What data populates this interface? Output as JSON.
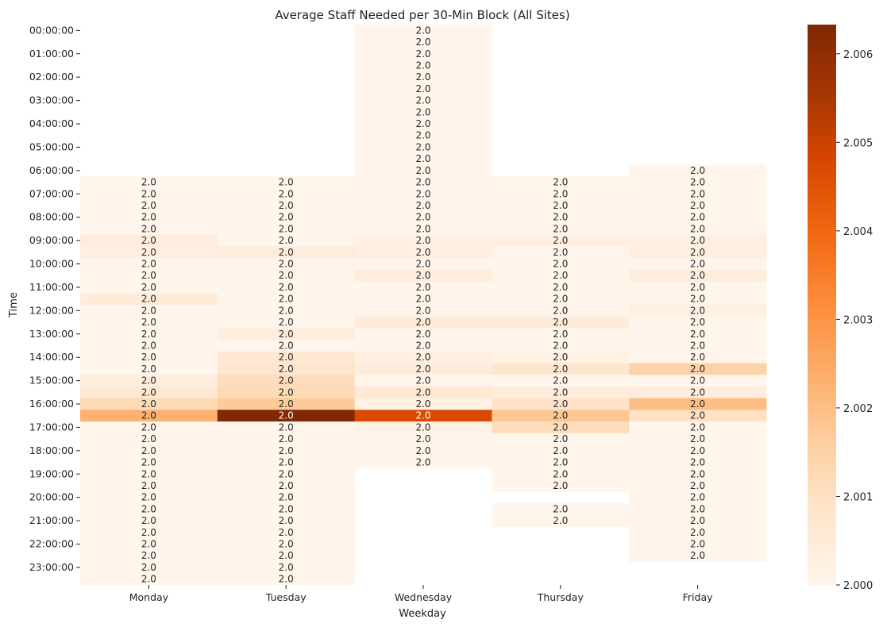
{
  "chart_data": {
    "type": "heatmap",
    "title": "Average Staff Needed per 30-Min Block (All Sites)",
    "xlabel": "Weekday",
    "ylabel": "Time",
    "columns": [
      "Monday",
      "Tuesday",
      "Wednesday",
      "Thursday",
      "Friday"
    ],
    "rows": [
      "00:00:00",
      "00:30:00",
      "01:00:00",
      "01:30:00",
      "02:00:00",
      "02:30:00",
      "03:00:00",
      "03:30:00",
      "04:00:00",
      "04:30:00",
      "05:00:00",
      "05:30:00",
      "06:00:00",
      "06:30:00",
      "07:00:00",
      "07:30:00",
      "08:00:00",
      "08:30:00",
      "09:00:00",
      "09:30:00",
      "10:00:00",
      "10:30:00",
      "11:00:00",
      "11:30:00",
      "12:00:00",
      "12:30:00",
      "13:00:00",
      "13:30:00",
      "14:00:00",
      "14:30:00",
      "15:00:00",
      "15:30:00",
      "16:00:00",
      "16:30:00",
      "17:00:00",
      "17:30:00",
      "18:00:00",
      "18:30:00",
      "19:00:00",
      "19:30:00",
      "20:00:00",
      "20:30:00",
      "21:00:00",
      "21:30:00",
      "22:00:00",
      "22:30:00",
      "23:00:00",
      "23:30:00"
    ],
    "y_tick_labels": [
      "00:00:00",
      "01:00:00",
      "02:00:00",
      "03:00:00",
      "04:00:00",
      "05:00:00",
      "06:00:00",
      "07:00:00",
      "08:00:00",
      "09:00:00",
      "10:00:00",
      "11:00:00",
      "12:00:00",
      "13:00:00",
      "14:00:00",
      "15:00:00",
      "16:00:00",
      "17:00:00",
      "18:00:00",
      "19:00:00",
      "20:00:00",
      "21:00:00",
      "22:00:00",
      "23:00:00"
    ],
    "values": [
      [
        null,
        null,
        2.0,
        null,
        null
      ],
      [
        null,
        null,
        2.0,
        null,
        null
      ],
      [
        null,
        null,
        2.0,
        null,
        null
      ],
      [
        null,
        null,
        2.0,
        null,
        null
      ],
      [
        null,
        null,
        2.0,
        null,
        null
      ],
      [
        null,
        null,
        2.0,
        null,
        null
      ],
      [
        null,
        null,
        2.0,
        null,
        null
      ],
      [
        null,
        null,
        2.0,
        null,
        null
      ],
      [
        null,
        null,
        2.0,
        null,
        null
      ],
      [
        null,
        null,
        2.0,
        null,
        null
      ],
      [
        null,
        null,
        2.0,
        null,
        null
      ],
      [
        null,
        null,
        2.0,
        null,
        null
      ],
      [
        null,
        null,
        2.0,
        null,
        2.0
      ],
      [
        2.0,
        2.0,
        2.0,
        2.0,
        2.0
      ],
      [
        2.0,
        2.0,
        2.0,
        2.0,
        2.0
      ],
      [
        2.0,
        2.0,
        2.0,
        2.0,
        2.0
      ],
      [
        2.0,
        2.0,
        2.0,
        2.0,
        2.0
      ],
      [
        2.0,
        2.0,
        2.0,
        2.0,
        2.0
      ],
      [
        2.0004,
        2.0,
        2.0002,
        2.0003,
        2.0003
      ],
      [
        2.0003,
        2.0004,
        2.0003,
        2.0,
        2.0003
      ],
      [
        2.0,
        2.0,
        2.0,
        2.0,
        2.0
      ],
      [
        2.0,
        2.0,
        2.0004,
        2.0,
        2.0004
      ],
      [
        2.0,
        2.0,
        2.0,
        2.0,
        2.0
      ],
      [
        2.0005,
        2.0,
        2.0,
        2.0,
        2.0
      ],
      [
        2.0,
        2.0,
        2.0,
        2.0,
        2.0003
      ],
      [
        2.0,
        2.0,
        2.0005,
        2.0005,
        2.0
      ],
      [
        2.0,
        2.0004,
        2.0,
        2.0,
        2.0
      ],
      [
        2.0,
        2.0,
        2.0,
        2.0,
        2.0
      ],
      [
        2.0,
        2.0007,
        2.0003,
        2.0002,
        2.0
      ],
      [
        2.0,
        2.0008,
        2.0004,
        2.0008,
        2.0015
      ],
      [
        2.0004,
        2.0011,
        2.0,
        2.0,
        2.0
      ],
      [
        2.0007,
        2.0012,
        2.0007,
        2.0004,
        2.0004
      ],
      [
        2.0012,
        2.0017,
        2.0002,
        2.0009,
        2.002
      ],
      [
        2.0023,
        2.0063,
        2.0047,
        2.0018,
        2.001
      ],
      [
        2.0,
        2.0,
        2.0002,
        2.0011,
        2.0
      ],
      [
        2.0,
        2.0,
        2.0,
        2.0,
        2.0
      ],
      [
        2.0,
        2.0,
        2.0,
        2.0,
        2.0
      ],
      [
        2.0,
        2.0,
        2.0,
        2.0,
        2.0
      ],
      [
        2.0,
        2.0,
        null,
        2.0,
        2.0
      ],
      [
        2.0,
        2.0,
        null,
        2.0,
        2.0
      ],
      [
        2.0,
        2.0,
        null,
        null,
        2.0
      ],
      [
        2.0,
        2.0,
        null,
        2.0,
        2.0
      ],
      [
        2.0,
        2.0,
        null,
        2.0,
        2.0
      ],
      [
        2.0,
        2.0,
        null,
        null,
        2.0
      ],
      [
        2.0,
        2.0,
        null,
        null,
        2.0
      ],
      [
        2.0,
        2.0,
        null,
        null,
        2.0
      ],
      [
        2.0,
        2.0,
        null,
        null,
        null
      ],
      [
        2.0,
        2.0,
        null,
        null,
        null
      ]
    ],
    "annotation_format": "0.0",
    "colormap": "Oranges",
    "colorbar_range": [
      2.0,
      2.00633
    ],
    "colorbar_ticks": [
      "2.000",
      "2.001",
      "2.002",
      "2.003",
      "2.004",
      "2.005",
      "2.006"
    ],
    "grid": false,
    "legend": "colorbar-right"
  }
}
